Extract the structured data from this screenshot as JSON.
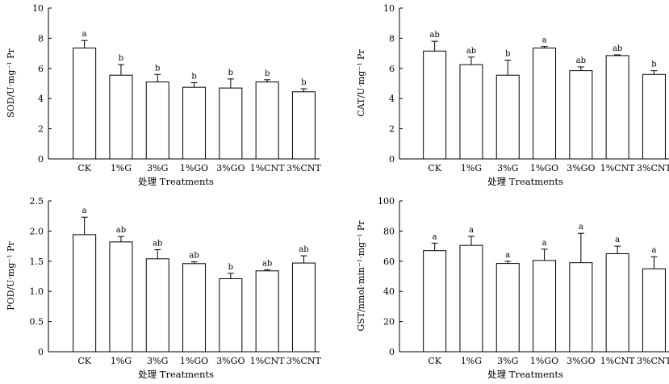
{
  "chart_data": [
    {
      "type": "bar",
      "categories": [
        "CK",
        "1%G",
        "3%G",
        "1%GO",
        "3%GO",
        "1%CNT",
        "3%CNT"
      ],
      "values": [
        7.35,
        5.55,
        5.1,
        4.75,
        4.7,
        5.1,
        4.45
      ],
      "errors": [
        0.5,
        0.7,
        0.5,
        0.3,
        0.6,
        0.15,
        0.2
      ],
      "significance": [
        "a",
        "b",
        "b",
        "b",
        "b",
        "b",
        "b"
      ],
      "xlabel": "处理 Treatments",
      "ylabel": "SOD/U·mg⁻¹ Pr",
      "ylim": [
        0,
        10
      ],
      "yticks": [
        0,
        2,
        4,
        6,
        8,
        10
      ],
      "ytick_labels": [
        "0",
        "2",
        "4",
        "6",
        "8",
        "10"
      ],
      "grid": false
    },
    {
      "type": "bar",
      "categories": [
        "CK",
        "1%G",
        "3%G",
        "1%GO",
        "3%GO",
        "1%CNT",
        "3%CNT"
      ],
      "values": [
        7.15,
        6.25,
        5.55,
        7.35,
        5.85,
        6.85,
        5.6
      ],
      "errors": [
        0.65,
        0.5,
        1.0,
        0.1,
        0.25,
        0.05,
        0.25
      ],
      "significance": [
        "ab",
        "ab",
        "b",
        "a",
        "ab",
        "ab",
        "b"
      ],
      "xlabel": "处理 Treatments",
      "ylabel": "CAT/U·mg⁻¹ Pr",
      "ylim": [
        0,
        10
      ],
      "yticks": [
        0,
        2,
        4,
        6,
        8,
        10
      ],
      "ytick_labels": [
        "0",
        "2",
        "4",
        "6",
        "8",
        "10"
      ],
      "grid": false
    },
    {
      "type": "bar",
      "categories": [
        "CK",
        "1%G",
        "3%G",
        "1%GO",
        "3%GO",
        "1%CNT",
        "3%CNT"
      ],
      "values": [
        1.94,
        1.82,
        1.54,
        1.46,
        1.21,
        1.34,
        1.47
      ],
      "errors": [
        0.29,
        0.09,
        0.15,
        0.03,
        0.09,
        0.02,
        0.12
      ],
      "significance": [
        "a",
        "ab",
        "ab",
        "ab",
        "b",
        "ab",
        "ab"
      ],
      "xlabel": "处理 Treatments",
      "ylabel": "POD/U·mg⁻¹ Pr",
      "ylim": [
        0,
        2.5
      ],
      "yticks": [
        0,
        0.5,
        1.0,
        1.5,
        2.0,
        2.5
      ],
      "ytick_labels": [
        "0",
        "0.5",
        "1.0",
        "1.5",
        "2.0",
        "2.5"
      ],
      "grid": false
    },
    {
      "type": "bar",
      "categories": [
        "CK",
        "1%G",
        "3%G",
        "1%GO",
        "3%GO",
        "1%CNT",
        "3%CNT"
      ],
      "values": [
        67,
        70.5,
        58.5,
        60.5,
        59,
        65,
        55
      ],
      "errors": [
        5,
        6,
        1.5,
        7.5,
        19.5,
        5,
        8
      ],
      "significance": [
        "a",
        "a",
        "a",
        "a",
        "a",
        "a",
        "a"
      ],
      "xlabel": "处理 Treatments",
      "ylabel": "GST/nmol·min⁻¹·mg⁻¹ Pr",
      "ylim": [
        0,
        100
      ],
      "yticks": [
        0,
        20,
        40,
        60,
        80,
        100
      ],
      "ytick_labels": [
        "0",
        "20",
        "40",
        "60",
        "80",
        "100"
      ],
      "grid": false
    }
  ]
}
